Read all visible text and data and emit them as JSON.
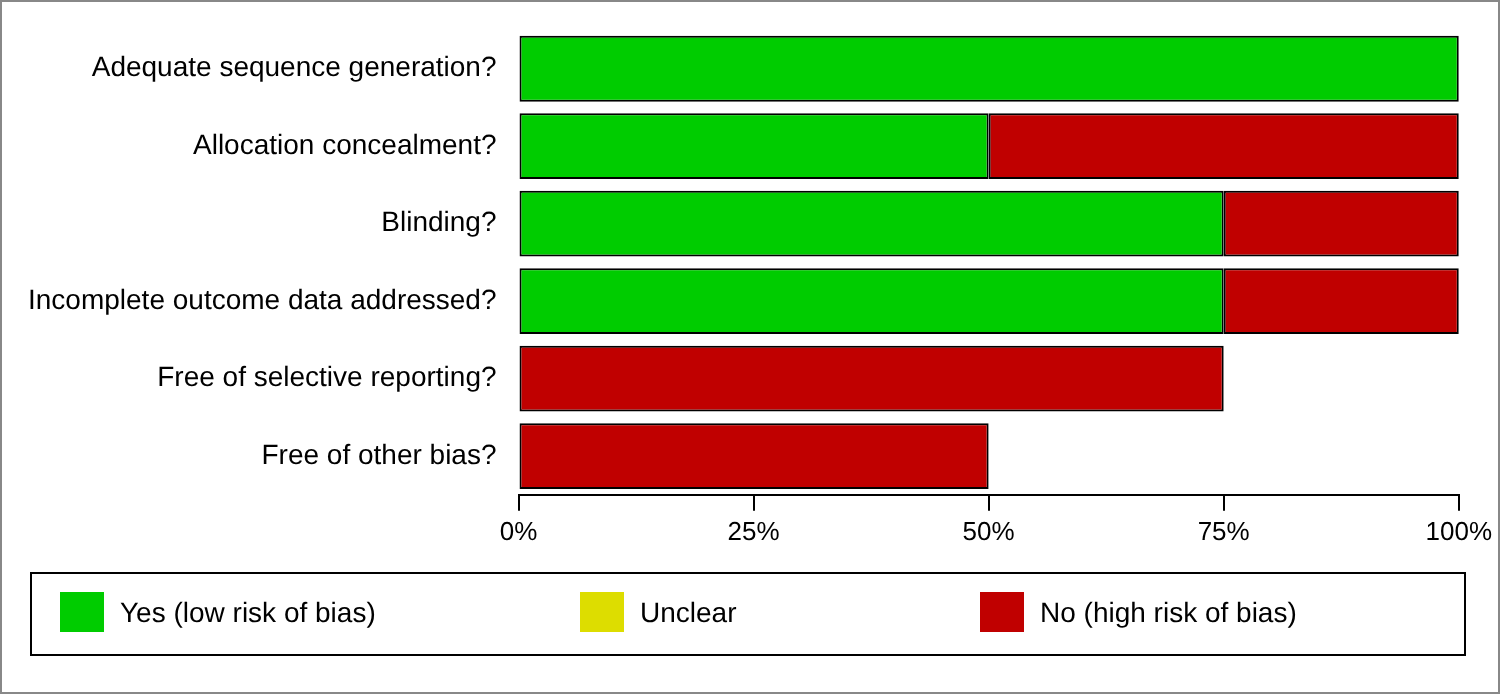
{
  "chart_data": {
    "type": "bar",
    "orientation": "horizontal",
    "stacked": true,
    "categories": [
      "Adequate sequence generation?",
      "Allocation concealment?",
      "Blinding?",
      "Incomplete outcome data addressed?",
      "Free of selective reporting?",
      "Free of other bias?"
    ],
    "series": [
      {
        "name": "Yes (low risk of bias)",
        "color": "#00cc00",
        "values": [
          100,
          50,
          75,
          75,
          0,
          0
        ]
      },
      {
        "name": "Unclear",
        "color": "#dddd00",
        "values": [
          0,
          0,
          0,
          0,
          0,
          0
        ]
      },
      {
        "name": "No (high risk of bias)",
        "color": "#c00000",
        "values": [
          0,
          50,
          25,
          25,
          75,
          50
        ]
      }
    ],
    "xlim": [
      0,
      100
    ],
    "xticks": [
      {
        "value": 0,
        "label": "0%"
      },
      {
        "value": 25,
        "label": "25%"
      },
      {
        "value": 50,
        "label": "50%"
      },
      {
        "value": 75,
        "label": "75%"
      },
      {
        "value": 100,
        "label": "100%"
      }
    ],
    "grid": false,
    "legend": "bottom"
  }
}
